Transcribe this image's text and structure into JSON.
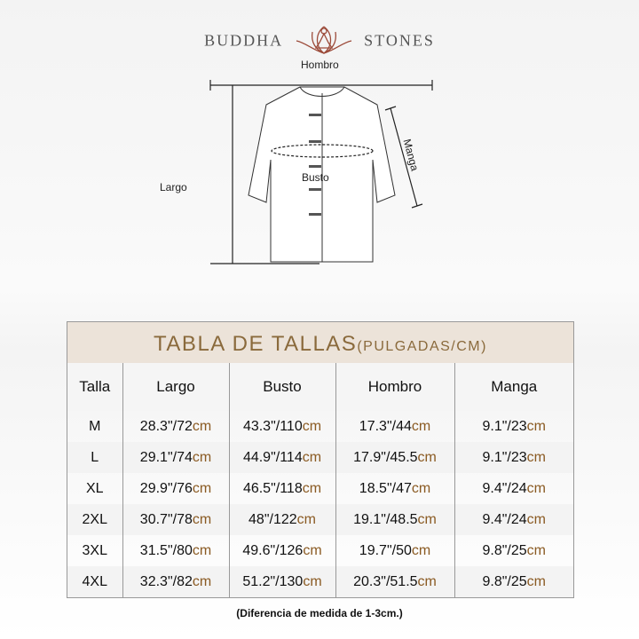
{
  "brand": {
    "left": "BUDDHA",
    "right": "STONES"
  },
  "diagram": {
    "shoulder": "Hombro",
    "sleeve": "Manga",
    "bust": "Busto",
    "length": "Largo"
  },
  "table": {
    "title": "TABLA DE TALLAS",
    "unit": "(PULGADAS/CM)",
    "headers": [
      "Talla",
      "Largo",
      "Busto",
      "Hombro",
      "Manga"
    ],
    "rows": [
      [
        "M",
        "28.3\"/72",
        "43.3\"/110",
        "17.3\"/44",
        "9.1\"/23"
      ],
      [
        "L",
        "29.1\"/74",
        "44.9\"/114",
        "17.9\"/45.5",
        "9.1\"/23"
      ],
      [
        "XL",
        "29.9\"/76",
        "46.5\"/118",
        "18.5\"/47",
        "9.4\"/24"
      ],
      [
        "2XL",
        "30.7\"/78",
        "48\"/122",
        "19.1\"/48.5",
        "9.4\"/24"
      ],
      [
        "3XL",
        "31.5\"/80",
        "49.6\"/126",
        "19.7\"/50",
        "9.8\"/25"
      ],
      [
        "4XL",
        "32.3\"/82",
        "51.2\"/130",
        "20.3\"/51.5",
        "9.8\"/25"
      ]
    ],
    "unit_suffix": "cm"
  },
  "note": "(Diferencia de medida de 1-3cm.)",
  "colors": {
    "accent": "#8a6a3c",
    "header_band": "#ece3d9"
  }
}
